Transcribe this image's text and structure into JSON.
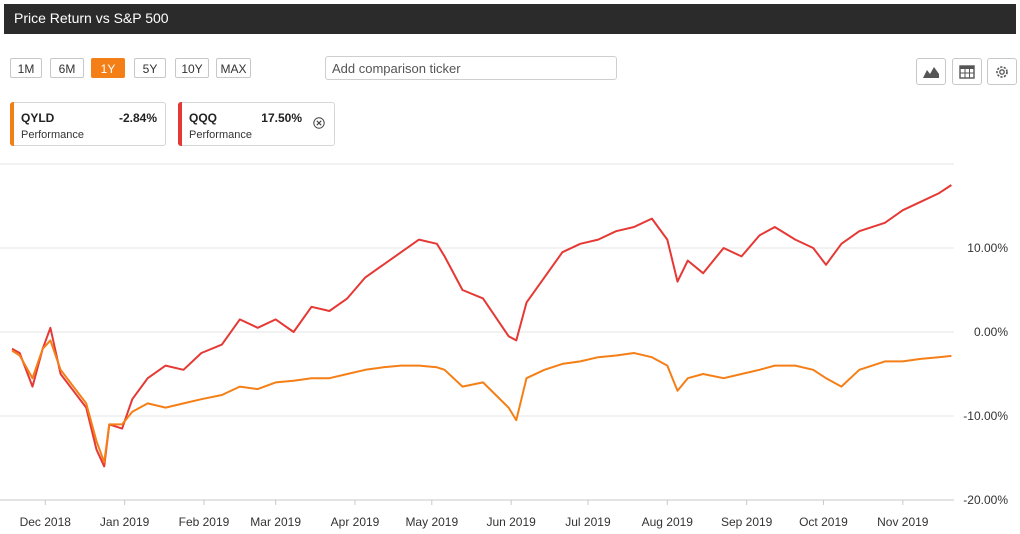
{
  "header": {
    "title": "Price Return vs S&P 500"
  },
  "toolbar": {
    "ranges": [
      "1M",
      "6M",
      "1Y",
      "5Y",
      "10Y",
      "MAX"
    ],
    "active_range": "1Y",
    "comparison_placeholder": "Add comparison ticker",
    "tools": [
      "area-chart-icon",
      "table-icon",
      "gear-icon"
    ]
  },
  "cards": [
    {
      "ticker": "QYLD",
      "value": "-2.84%",
      "label": "Performance",
      "color": "#f57f17"
    },
    {
      "ticker": "QQQ",
      "value": "17.50%",
      "label": "Performance",
      "color": "#e53935",
      "removable": true
    }
  ],
  "chart_data": {
    "type": "line",
    "x_ticks": [
      "Dec 2018",
      "Jan 2019",
      "Feb 2019",
      "Mar 2019",
      "Apr 2019",
      "May 2019",
      "Jun 2019",
      "Jul 2019",
      "Aug 2019",
      "Sep 2019",
      "Oct 2019",
      "Nov 2019"
    ],
    "y_ticks": [
      "10.00%",
      "0.00%",
      "-10.00%",
      "-20.00%"
    ],
    "ylim": [
      -20,
      20
    ],
    "grid": true,
    "series": [
      {
        "name": "QQQ",
        "color": "#e53935",
        "x": [
          "2018-11-18",
          "2018-11-21",
          "2018-11-26",
          "2018-11-30",
          "2018-12-03",
          "2018-12-07",
          "2018-12-12",
          "2018-12-17",
          "2018-12-21",
          "2018-12-24",
          "2018-12-26",
          "2018-12-31",
          "2019-01-04",
          "2019-01-10",
          "2019-01-17",
          "2019-01-24",
          "2019-01-31",
          "2019-02-08",
          "2019-02-15",
          "2019-02-22",
          "2019-03-01",
          "2019-03-08",
          "2019-03-15",
          "2019-03-22",
          "2019-03-29",
          "2019-04-05",
          "2019-04-12",
          "2019-04-19",
          "2019-04-26",
          "2019-05-03",
          "2019-05-06",
          "2019-05-13",
          "2019-05-21",
          "2019-05-31",
          "2019-06-03",
          "2019-06-07",
          "2019-06-14",
          "2019-06-21",
          "2019-06-28",
          "2019-07-05",
          "2019-07-12",
          "2019-07-19",
          "2019-07-26",
          "2019-08-01",
          "2019-08-05",
          "2019-08-09",
          "2019-08-15",
          "2019-08-23",
          "2019-08-30",
          "2019-09-06",
          "2019-09-12",
          "2019-09-20",
          "2019-09-27",
          "2019-10-02",
          "2019-10-08",
          "2019-10-15",
          "2019-10-25",
          "2019-11-01",
          "2019-11-08",
          "2019-11-15",
          "2019-11-20"
        ],
        "y": [
          -2.0,
          -2.5,
          -6.5,
          -2.0,
          0.5,
          -5.0,
          -7.0,
          -9.0,
          -14.0,
          -16.0,
          -11.0,
          -11.5,
          -8.0,
          -5.5,
          -4.0,
          -4.5,
          -2.5,
          -1.5,
          1.5,
          0.5,
          1.5,
          0.0,
          3.0,
          2.5,
          4.0,
          6.5,
          8.0,
          9.5,
          11.0,
          10.5,
          9.0,
          5.0,
          4.0,
          -0.5,
          -1.0,
          3.5,
          6.5,
          9.5,
          10.5,
          11.0,
          12.0,
          12.5,
          13.5,
          11.0,
          6.0,
          8.5,
          7.0,
          10.0,
          9.0,
          11.5,
          12.5,
          11.0,
          10.0,
          8.0,
          10.5,
          12.0,
          13.0,
          14.5,
          15.5,
          16.5,
          17.5
        ]
      },
      {
        "name": "QYLD",
        "color": "#f57f17",
        "x": [
          "2018-11-18",
          "2018-11-21",
          "2018-11-26",
          "2018-11-30",
          "2018-12-03",
          "2018-12-07",
          "2018-12-12",
          "2018-12-17",
          "2018-12-21",
          "2018-12-24",
          "2018-12-26",
          "2018-12-31",
          "2019-01-04",
          "2019-01-10",
          "2019-01-17",
          "2019-01-24",
          "2019-01-31",
          "2019-02-08",
          "2019-02-15",
          "2019-02-22",
          "2019-03-01",
          "2019-03-08",
          "2019-03-15",
          "2019-03-22",
          "2019-03-29",
          "2019-04-05",
          "2019-04-12",
          "2019-04-19",
          "2019-04-26",
          "2019-05-03",
          "2019-05-06",
          "2019-05-13",
          "2019-05-21",
          "2019-05-31",
          "2019-06-03",
          "2019-06-07",
          "2019-06-14",
          "2019-06-21",
          "2019-06-28",
          "2019-07-05",
          "2019-07-12",
          "2019-07-19",
          "2019-07-26",
          "2019-08-01",
          "2019-08-05",
          "2019-08-09",
          "2019-08-15",
          "2019-08-23",
          "2019-08-30",
          "2019-09-06",
          "2019-09-12",
          "2019-09-20",
          "2019-09-27",
          "2019-10-02",
          "2019-10-08",
          "2019-10-15",
          "2019-10-25",
          "2019-11-01",
          "2019-11-08",
          "2019-11-15",
          "2019-11-20"
        ],
        "y": [
          -2.2,
          -2.8,
          -5.5,
          -2.0,
          -1.0,
          -4.5,
          -6.5,
          -8.5,
          -13.0,
          -15.5,
          -11.0,
          -11.0,
          -9.5,
          -8.5,
          -9.0,
          -8.5,
          -8.0,
          -7.5,
          -6.5,
          -6.8,
          -6.0,
          -5.8,
          -5.5,
          -5.5,
          -5.0,
          -4.5,
          -4.2,
          -4.0,
          -4.0,
          -4.2,
          -4.5,
          -6.5,
          -6.0,
          -9.0,
          -10.5,
          -5.5,
          -4.5,
          -3.8,
          -3.5,
          -3.0,
          -2.8,
          -2.5,
          -3.0,
          -4.0,
          -7.0,
          -5.5,
          -5.0,
          -5.5,
          -5.0,
          -4.5,
          -4.0,
          -4.0,
          -4.5,
          -5.5,
          -6.5,
          -4.5,
          -3.5,
          -3.5,
          -3.2,
          -3.0,
          -2.84
        ]
      }
    ]
  }
}
